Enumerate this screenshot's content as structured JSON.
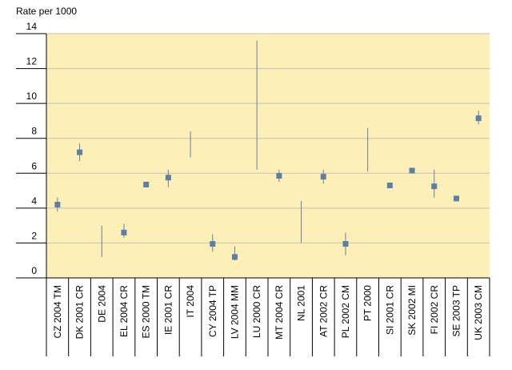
{
  "chart_data": {
    "type": "scatter",
    "title": "",
    "ylabel": "Rate per 1000",
    "xlabel": "",
    "ylim": [
      0,
      14
    ],
    "yticks": [
      0,
      2,
      4,
      6,
      8,
      10,
      12,
      14
    ],
    "grid": true,
    "categories": [
      "CZ 2004 TM",
      "DK 2001 CR",
      "DE 2004",
      "EL 2004 CR",
      "ES 2000 TM",
      "IE 2001 CR",
      "IT 2004",
      "CY 2004 TP",
      "LV 2004 MM",
      "LU 2000 CR",
      "MT 2004 CR",
      "NL 2001",
      "AT 2002 CR",
      "PL 2002 CM",
      "PT  2000",
      "SI 2001 CR",
      "SK 2002 MI",
      "FI 2002 CR",
      "SE 2003 TP",
      "UK 2003 CM"
    ],
    "values": [
      4.2,
      7.2,
      null,
      2.6,
      5.35,
      5.75,
      null,
      1.95,
      1.2,
      null,
      5.85,
      null,
      5.8,
      1.95,
      null,
      5.3,
      6.15,
      5.25,
      4.55,
      9.15
    ],
    "range_low": [
      3.8,
      6.7,
      1.2,
      2.3,
      null,
      5.2,
      6.9,
      1.5,
      1.0,
      6.2,
      5.5,
      2.0,
      5.4,
      1.3,
      6.1,
      null,
      null,
      4.6,
      null,
      8.8
    ],
    "range_high": [
      4.6,
      7.7,
      3.0,
      3.1,
      null,
      6.2,
      8.4,
      2.5,
      1.8,
      13.6,
      6.2,
      4.4,
      6.2,
      2.6,
      8.6,
      null,
      null,
      6.2,
      null,
      9.6
    ],
    "colors": {
      "plot_background": "#fcefb8",
      "marker": "#5e7ea8",
      "range_line": "#6b7f9e",
      "grid": "#c9c2b0",
      "axis": "#000000"
    }
  }
}
